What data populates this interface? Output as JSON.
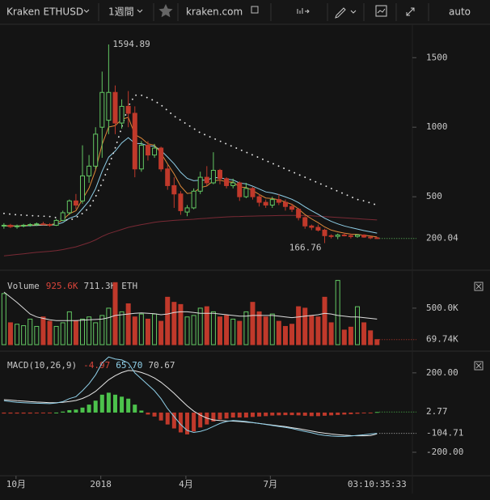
{
  "toolbar": {
    "symbol": "Kraken ETHUSD",
    "interval": "1週間",
    "site": "kraken.com",
    "scale_mode": "auto"
  },
  "countdown": "03:10:35:33",
  "chart_data": [
    {
      "type": "candlestick",
      "x": [
        0,
        1,
        2,
        3,
        4,
        5,
        6,
        7,
        8,
        9,
        10,
        11,
        12,
        13,
        14,
        15,
        16,
        17,
        18,
        19,
        20,
        21,
        22,
        23,
        24,
        25,
        26,
        27,
        28,
        29,
        30,
        31,
        32,
        33,
        34,
        35,
        36,
        37,
        38,
        39,
        40,
        41,
        42,
        43,
        44,
        45,
        46,
        47,
        48,
        49,
        50,
        51,
        52,
        53,
        54,
        55,
        56,
        57
      ],
      "xlim": [
        -0.6,
        62.4
      ],
      "xticks": [
        {
          "value": 1.85,
          "label": "10月"
        },
        {
          "value": 14.8,
          "label": "2018"
        },
        {
          "value": 27.8,
          "label": "4月"
        },
        {
          "value": 40.7,
          "label": "7月"
        }
      ],
      "ylim": [
        -5,
        1740
      ],
      "yticks": [
        500,
        1000,
        1500
      ],
      "up_color": "#63c763",
      "down_color": "#c0392b",
      "open": [
        290,
        295,
        285,
        290,
        295,
        300,
        305,
        300,
        295,
        330,
        385,
        470,
        470,
        650,
        720,
        1000,
        1050,
        1250,
        1030,
        1150,
        1100,
        700,
        870,
        800,
        850,
        700,
        580,
        520,
        390,
        420,
        540,
        640,
        600,
        690,
        630,
        580,
        600,
        500,
        560,
        500,
        460,
        440,
        480,
        460,
        430,
        410,
        350,
        290,
        280,
        260,
        220,
        215,
        225,
        220,
        215,
        225,
        210,
        205
      ],
      "high": [
        310,
        305,
        300,
        305,
        310,
        315,
        320,
        310,
        340,
        400,
        480,
        520,
        870,
        800,
        1000,
        1400,
        1594.89,
        1300,
        1200,
        1260,
        1150,
        900,
        900,
        880,
        860,
        730,
        640,
        540,
        440,
        560,
        680,
        720,
        820,
        700,
        640,
        630,
        610,
        600,
        570,
        520,
        480,
        500,
        520,
        480,
        450,
        420,
        360,
        300,
        300,
        270,
        230,
        235,
        240,
        235,
        230,
        230,
        215,
        210
      ],
      "low": [
        270,
        275,
        270,
        280,
        285,
        290,
        295,
        285,
        290,
        325,
        370,
        410,
        450,
        600,
        700,
        780,
        950,
        950,
        990,
        1000,
        640,
        680,
        760,
        780,
        680,
        550,
        420,
        370,
        360,
        410,
        520,
        580,
        590,
        590,
        560,
        560,
        470,
        490,
        480,
        430,
        420,
        420,
        440,
        400,
        390,
        330,
        270,
        260,
        250,
        166.76,
        200,
        195,
        215,
        200,
        205,
        205,
        195,
        198
      ],
      "close": [
        295,
        285,
        290,
        295,
        300,
        305,
        300,
        295,
        330,
        385,
        470,
        440,
        650,
        720,
        950,
        1250,
        1250,
        1030,
        1150,
        1100,
        700,
        870,
        800,
        850,
        700,
        580,
        520,
        400,
        420,
        540,
        640,
        600,
        690,
        630,
        580,
        600,
        500,
        560,
        500,
        460,
        440,
        480,
        460,
        430,
        410,
        350,
        290,
        280,
        260,
        220,
        215,
        225,
        220,
        215,
        225,
        210,
        205,
        200.04
      ],
      "lines": [
        {
          "color": "#7a2a35",
          "style": "solid",
          "values": [
            75,
            80,
            85,
            90,
            95,
            100,
            104,
            108,
            113,
            120,
            130,
            140,
            155,
            170,
            190,
            215,
            235,
            250,
            265,
            280,
            290,
            300,
            308,
            316,
            322,
            326,
            330,
            333,
            335,
            338,
            342,
            345,
            349,
            352,
            355,
            357,
            358,
            360,
            361,
            362,
            363,
            364,
            365,
            366,
            366,
            366,
            365,
            363,
            360,
            357,
            354,
            351,
            348,
            345,
            342,
            339,
            336,
            333
          ]
        },
        {
          "color": "#8fcfe8",
          "style": "solid",
          "values": [
            290,
            290,
            290,
            290,
            292,
            294,
            295,
            295,
            300,
            315,
            345,
            362,
            414,
            470,
            558,
            683,
            785,
            828,
            887,
            925,
            884,
            882,
            867,
            863,
            833,
            786,
            737,
            676,
            632,
            615,
            620,
            620,
            638,
            637,
            626,
            621,
            599,
            593,
            576,
            556,
            535,
            527,
            515,
            499,
            482,
            458,
            427,
            400,
            374,
            346,
            323,
            305,
            290,
            278,
            268,
            257,
            248,
            239
          ]
        },
        {
          "color": "#e08a3a",
          "style": "solid",
          "values": [
            292,
            290,
            290,
            292,
            295,
            298,
            299,
            298,
            308,
            333,
            378,
            399,
            482,
            562,
            691,
            877,
            1001,
            1011,
            1057,
            1071,
            947,
            921,
            881,
            871,
            814,
            736,
            664,
            576,
            524,
            529,
            566,
            577,
            615,
            620,
            607,
            605,
            570,
            567,
            545,
            517,
            491,
            487,
            478,
            462,
            445,
            413,
            372,
            341,
            314,
            283,
            260,
            248,
            239,
            231,
            229,
            223,
            217,
            211
          ]
        },
        {
          "color": "#e6e6e6",
          "style": "dotted",
          "values": [
            380,
            375,
            370,
            368,
            365,
            362,
            360,
            358,
            350,
            340,
            330,
            350,
            380,
            420,
            500,
            600,
            720,
            850,
            1000,
            1150,
            1230,
            1230,
            1210,
            1190,
            1160,
            1120,
            1080,
            1050,
            1020,
            990,
            960,
            940,
            920,
            900,
            880,
            860,
            840,
            820,
            800,
            780,
            760,
            740,
            720,
            700,
            680,
            660,
            640,
            620,
            600,
            580,
            560,
            540,
            520,
            500,
            480,
            470,
            455,
            440
          ]
        }
      ]
    },
    {
      "type": "volume",
      "title": "Volume",
      "stats": [
        {
          "text": "925.6K",
          "color": "#d9443a"
        },
        {
          "text": "711.3K",
          "color": "#c8c8c8"
        },
        {
          "text": "ETH",
          "color": "#c8c8c8"
        }
      ],
      "ylim": [
        0,
        920
      ],
      "yticks": [
        {
          "value": 500,
          "label": "500.0K"
        }
      ],
      "values": [
        700,
        300,
        280,
        260,
        350,
        250,
        380,
        320,
        250,
        300,
        450,
        330,
        350,
        380,
        300,
        400,
        500,
        850,
        450,
        560,
        380,
        420,
        350,
        420,
        320,
        650,
        580,
        550,
        380,
        400,
        500,
        520,
        450,
        380,
        400,
        350,
        320,
        450,
        580,
        450,
        380,
        420,
        320,
        250,
        280,
        520,
        500,
        400,
        380,
        650,
        300,
        880,
        200,
        240,
        520,
        300,
        190,
        69.74
      ],
      "value_labels": [
        null,
        null,
        null,
        null,
        null,
        null,
        null,
        null,
        null,
        null,
        null,
        null,
        null,
        null,
        null,
        null,
        null,
        null,
        null,
        null,
        null,
        null,
        null,
        null,
        null,
        null,
        null,
        null,
        null,
        null,
        null,
        null,
        null,
        null,
        null,
        null,
        null,
        null,
        null,
        null,
        null,
        null,
        null,
        null,
        null,
        null,
        null,
        null,
        null,
        null,
        null,
        null,
        null,
        null,
        null,
        null,
        null,
        "69.74K"
      ],
      "ma": {
        "color": "#dcdcdc",
        "values": [
          720,
          650,
          580,
          500,
          420,
          380,
          360,
          340,
          330,
          330,
          330,
          330,
          335,
          340,
          345,
          350,
          370,
          400,
          410,
          420,
          430,
          435,
          430,
          425,
          410,
          420,
          440,
          450,
          450,
          440,
          430,
          430,
          430,
          420,
          410,
          400,
          390,
          390,
          400,
          400,
          400,
          400,
          390,
          380,
          370,
          380,
          390,
          400,
          410,
          430,
          420,
          400,
          390,
          380,
          380,
          370,
          360,
          350
        ]
      }
    },
    {
      "type": "macd",
      "title": "MACD(10,26,9)",
      "stats": [
        {
          "text": "-4.97",
          "color": "#d9443a"
        },
        {
          "text": "65.70",
          "color": "#8fcfe8"
        },
        {
          "text": "70.67",
          "color": "#c8c8c8"
        }
      ],
      "ylim": [
        -306,
        285
      ],
      "yticks": [
        {
          "value": 200,
          "label": "200.00"
        },
        {
          "value": -200,
          "label": "-200.00"
        }
      ],
      "up_color": "#4cc24c",
      "down_color": "#c0392b",
      "histogram": [
        -5,
        -5,
        -5,
        -5,
        -5,
        -4,
        -4,
        -3,
        0,
        5,
        12,
        15,
        25,
        40,
        60,
        90,
        100,
        90,
        80,
        70,
        40,
        10,
        -10,
        -20,
        -40,
        -60,
        -80,
        -100,
        -110,
        -95,
        -75,
        -60,
        -45,
        -35,
        -30,
        -25,
        -25,
        -25,
        -22,
        -20,
        -18,
        -15,
        -14,
        -13,
        -13,
        -14,
        -16,
        -18,
        -18,
        -16,
        -14,
        -12,
        -10,
        -8,
        -6,
        -4,
        -3,
        2.77
      ],
      "macd": {
        "color": "#8fcfe8",
        "values": [
          60,
          55,
          52,
          50,
          48,
          47,
          46,
          45,
          48,
          55,
          70,
          80,
          110,
          145,
          190,
          250,
          280,
          270,
          265,
          250,
          200,
          170,
          140,
          110,
          70,
          20,
          -20,
          -60,
          -90,
          -100,
          -95,
          -85,
          -70,
          -55,
          -45,
          -40,
          -42,
          -45,
          -50,
          -55,
          -60,
          -65,
          -70,
          -75,
          -80,
          -88,
          -95,
          -102,
          -110,
          -115,
          -118,
          -120,
          -120,
          -118,
          -115,
          -112,
          -108,
          -104.71
        ]
      },
      "signal": {
        "color": "#e6e6e6",
        "values": [
          65,
          63,
          60,
          58,
          55,
          53,
          52,
          50,
          50,
          52,
          56,
          61,
          71,
          86,
          107,
          136,
          165,
          186,
          202,
          212,
          210,
          202,
          190,
          174,
          153,
          126,
          97,
          65,
          34,
          7,
          -13,
          -28,
          -37,
          -40,
          -42,
          -43,
          -45,
          -48,
          -51,
          -55,
          -59,
          -63,
          -67,
          -71,
          -76,
          -81,
          -87,
          -93,
          -99,
          -104,
          -108,
          -111,
          -114,
          -116,
          -117,
          -117,
          -116,
          -107.48
        ]
      }
    }
  ]
}
